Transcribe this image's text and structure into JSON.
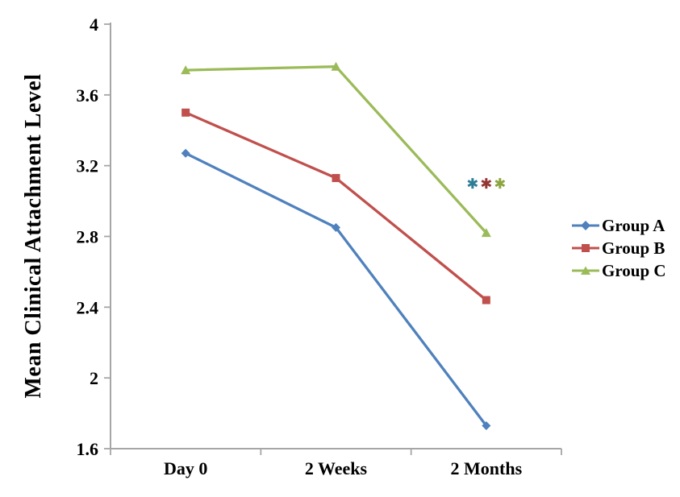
{
  "figure": {
    "background": "#ffffff",
    "axis_color": "#a6a6a6",
    "text_color": "#000000"
  },
  "chart_data": {
    "type": "line",
    "title": "",
    "xlabel": "",
    "ylabel": "Mean Clinical Attachment Level",
    "categories": [
      "Day 0",
      "2 Weeks",
      "2 Months"
    ],
    "series": [
      {
        "name": "Group A",
        "marker": "diamond",
        "color": "#4F81BD",
        "values": [
          3.27,
          2.85,
          1.73
        ]
      },
      {
        "name": "Group B",
        "marker": "square",
        "color": "#C0504D",
        "values": [
          3.5,
          3.13,
          2.44
        ]
      },
      {
        "name": "Group C",
        "marker": "triangle",
        "color": "#9BBB59",
        "values": [
          3.74,
          3.76,
          2.82
        ]
      }
    ],
    "ylim": [
      1.6,
      4.0
    ],
    "yticks": [
      4,
      3.6,
      3.2,
      2.8,
      2.4,
      2,
      1.6
    ],
    "grid": false,
    "legend_position": "right",
    "annotation": {
      "symbols": [
        {
          "glyph": "*",
          "color": "#2E7E95"
        },
        {
          "glyph": "*",
          "color": "#943634"
        },
        {
          "glyph": "*",
          "color": "#8CA53F"
        }
      ],
      "x_category": "2 Months",
      "y_value": 3.1
    }
  }
}
